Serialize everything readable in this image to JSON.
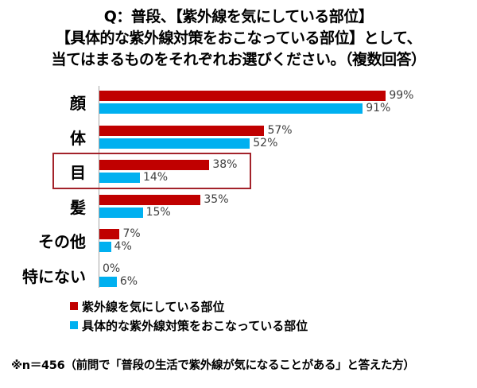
{
  "title": {
    "line1": "Q：普段、【紫外線を気にしている部位】",
    "line2": "【具体的な紫外線対策をおこなっている部位】として、",
    "line3": "当てはまるものをそれぞれお選びください。（複数回答）"
  },
  "colors": {
    "series1": "#C00000",
    "series2": "#00B0F0",
    "highlight": "#A3222A"
  },
  "chart_data": {
    "type": "bar",
    "orientation": "horizontal",
    "title": "Q：普段、【紫外線を気にしている部位】【具体的な紫外線対策をおこなっている部位】として、当てはまるものをそれぞれお選びください。（複数回答）",
    "categories": [
      "顔",
      "体",
      "目",
      "髪",
      "その他",
      "特にない"
    ],
    "series": [
      {
        "name": "紫外線を気にしている部位",
        "values": [
          99,
          57,
          38,
          35,
          7,
          0
        ]
      },
      {
        "name": "具体的な紫外線対策をおこなっている部位",
        "values": [
          91,
          52,
          14,
          15,
          4,
          6
        ]
      }
    ],
    "value_labels": {
      "series1": [
        "99%",
        "57%",
        "38%",
        "35%",
        "7%",
        "0%"
      ],
      "series2": [
        "91%",
        "52%",
        "14%",
        "15%",
        "4%",
        "6%"
      ]
    },
    "xlim": [
      0,
      100
    ],
    "unit": "%",
    "grid": false,
    "legend_position": "bottom",
    "highlighted_category": "目",
    "annotation": "※n＝456（前問で「普段の生活で紫外線が気になることがある」と答えた方）"
  },
  "legend": {
    "series1": "紫外線を気にしている部位",
    "series2": "具体的な紫外線対策をおこなっている部位"
  },
  "note": "※n＝456（前問で「普段の生活で紫外線が気になることがある」と答えた方）"
}
